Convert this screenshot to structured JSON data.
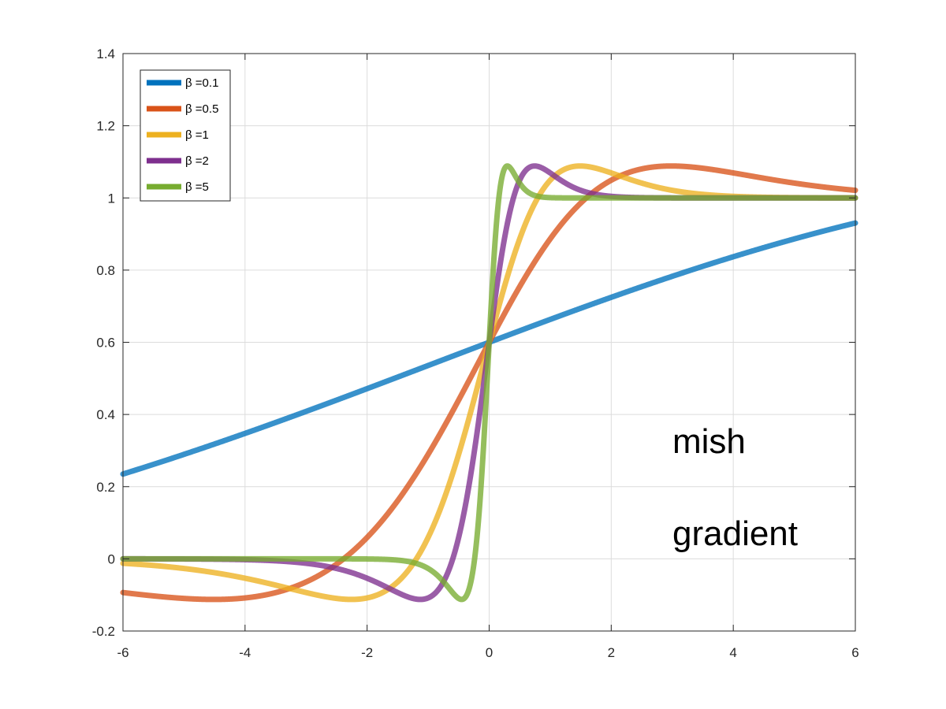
{
  "chart_data": {
    "type": "line",
    "title": "",
    "xlabel": "",
    "ylabel": "",
    "xlim": [
      -6,
      6
    ],
    "ylim": [
      -0.2,
      1.4
    ],
    "x_ticks": [
      -6,
      -4,
      -2,
      0,
      2,
      4,
      6
    ],
    "x_tick_labels": [
      "-6",
      "-4",
      "-2",
      "0",
      "2",
      "4",
      "6"
    ],
    "y_ticks": [
      -0.2,
      0,
      0.2,
      0.4,
      0.6,
      0.8,
      1,
      1.2,
      1.4
    ],
    "y_tick_labels": [
      "-0.2",
      "0",
      "0.2",
      "0.4",
      "0.6",
      "0.8",
      "1",
      "1.2",
      "1.4"
    ],
    "grid": true,
    "legend_position": "top-left",
    "annotations": [
      "mish",
      "gradient"
    ],
    "x_step": 0.1,
    "series": [
      {
        "name": "β =0.1",
        "beta": 0.1,
        "color": "#0072BD"
      },
      {
        "name": "β =0.5",
        "beta": 0.5,
        "color": "#D95319"
      },
      {
        "name": "β =1",
        "beta": 1,
        "color": "#EDB120"
      },
      {
        "name": "β =2",
        "beta": 2,
        "color": "#7E2F8E"
      },
      {
        "name": "β =5",
        "beta": 5,
        "color": "#77AC30"
      }
    ]
  }
}
